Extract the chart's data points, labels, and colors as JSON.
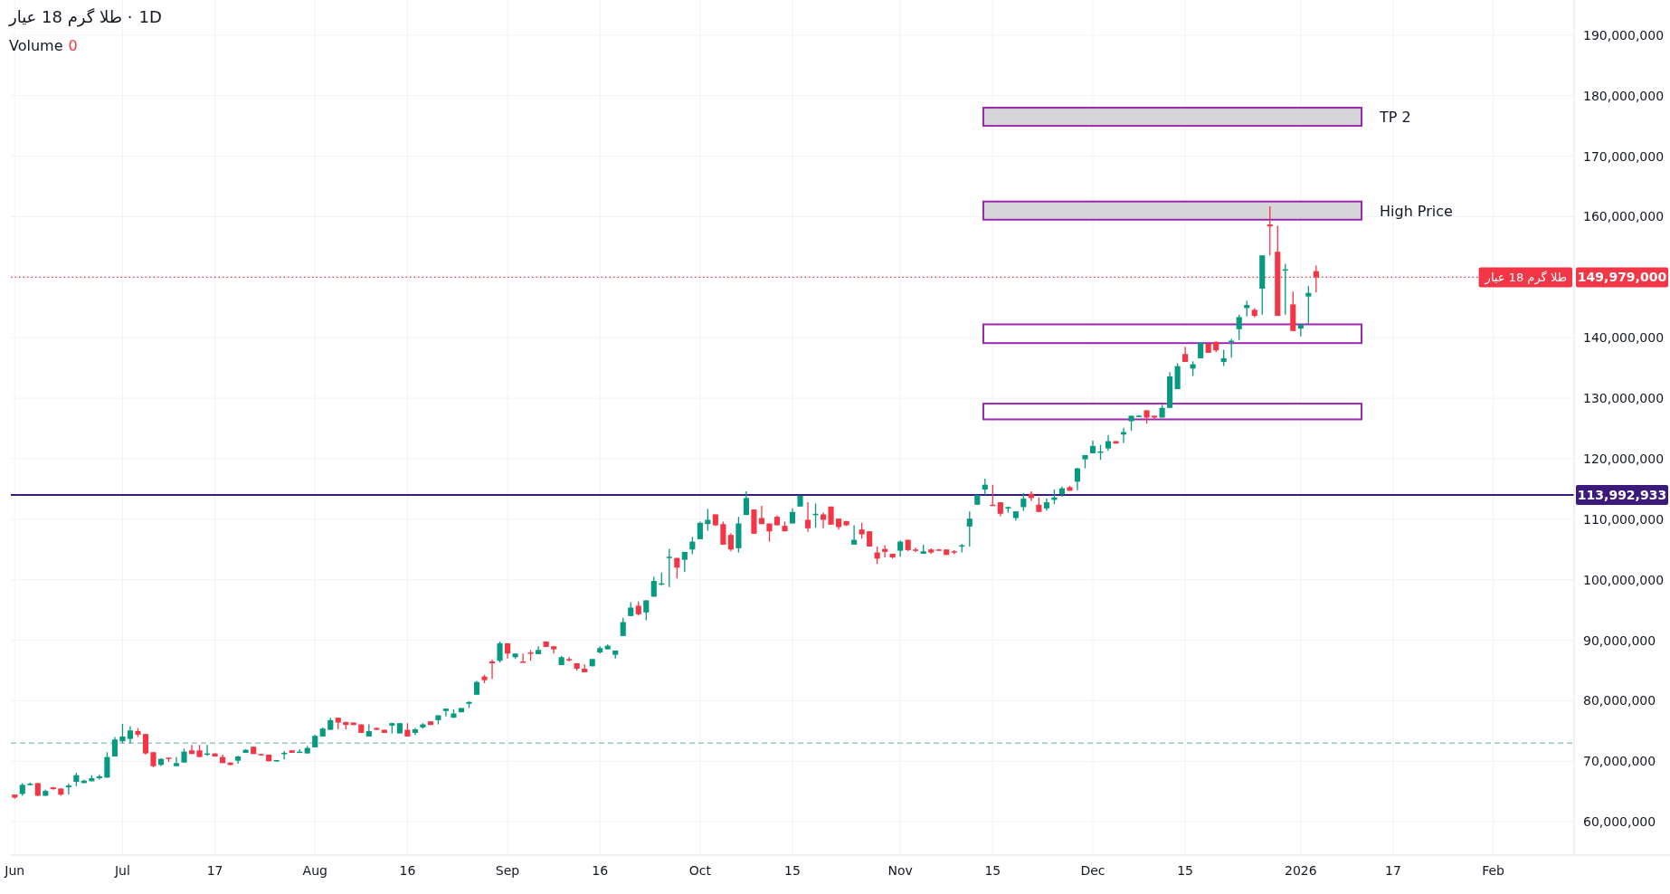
{
  "chart_data": {
    "type": "candlestick",
    "title": "طلا گرم 18 عیار ·",
    "subtitle": "1D",
    "annotations": [
      "Volume",
      "0",
      {
        "text": "طلا گرم 18 عیار",
        "y": 149979000.0
      }
    ],
    "categories": [
      "Jun",
      null,
      null,
      null,
      null,
      null,
      null,
      null,
      null,
      null,
      null,
      null,
      null,
      null,
      "Jul",
      null,
      null,
      null,
      null,
      null,
      null,
      null,
      null,
      null,
      null,
      null,
      "17",
      null,
      null,
      null,
      null,
      null,
      null,
      null,
      null,
      null,
      null,
      null,
      null,
      "Aug",
      null,
      null,
      null,
      null,
      null,
      null,
      null,
      null,
      null,
      null,
      null,
      "16",
      null,
      null,
      null,
      null,
      null,
      null,
      null,
      null,
      null,
      null,
      null,
      null,
      "Sep",
      null,
      null,
      null,
      null,
      null,
      null,
      null,
      null,
      null,
      null,
      null,
      "16",
      null,
      null,
      null,
      null,
      null,
      null,
      null,
      null,
      null,
      null,
      null,
      null,
      "Oct",
      null,
      null,
      null,
      null,
      null,
      null,
      null,
      null,
      null,
      null,
      null,
      "15",
      null,
      null,
      null,
      null,
      null,
      null,
      null,
      null,
      null,
      null,
      null,
      null,
      null,
      "Nov",
      null,
      null,
      null,
      null,
      null,
      null,
      null,
      null,
      null,
      null,
      null,
      "15",
      null,
      null,
      null,
      null,
      null,
      null,
      null,
      null,
      null,
      null,
      null,
      null,
      "Dec",
      null,
      null,
      null,
      null,
      null,
      null,
      null,
      null,
      null,
      null,
      null,
      "15",
      null,
      null,
      null,
      null,
      null,
      null,
      null,
      null,
      null,
      null,
      null,
      null,
      null,
      null,
      "2026",
      null,
      null,
      null,
      null,
      null,
      null,
      null,
      null,
      null,
      null,
      null,
      "17",
      null,
      null,
      null,
      null,
      null,
      null,
      null,
      null,
      null,
      null,
      null,
      null,
      "Feb",
      null,
      null,
      null,
      null,
      null,
      null,
      null,
      null,
      null,
      null
    ],
    "ohlc": [
      [
        64500000.0,
        64500000.0,
        63800000.0,
        64000000.0
      ],
      [
        64600000.0,
        66400000.0,
        64300000.0,
        66100000.0
      ],
      [
        66200000.0,
        66500000.0,
        66000000.0,
        66300000.0
      ],
      [
        66400000.0,
        66400000.0,
        64300000.0,
        64300000.0
      ],
      [
        64300000.0,
        65300000.0,
        64300000.0,
        65100000.0
      ],
      [
        65700000.0,
        65800000.0,
        65300000.0,
        65400000.0
      ],
      [
        65500000.0,
        65500000.0,
        64300000.0,
        64500000.0
      ],
      [
        65700000.0,
        66300000.0,
        64500000.0,
        66000000.0
      ],
      [
        66600000.0,
        68100000.0,
        65900000.0,
        67700000.0
      ],
      [
        66400000.0,
        67000000.0,
        66400000.0,
        66800000.0
      ],
      [
        66700000.0,
        67700000.0,
        66700000.0,
        67200000.0
      ],
      [
        67200000.0,
        67800000.0,
        67000000.0,
        67500000.0
      ],
      [
        67300000.0,
        71500000.0,
        67300000.0,
        70700000.0
      ],
      [
        70800000.0,
        74000000.0,
        70800000.0,
        73600000.0
      ],
      [
        73300000.0,
        76200000.0,
        73000000.0,
        74100000.0
      ],
      [
        73700000.0,
        75800000.0,
        73000000.0,
        75100000.0
      ],
      [
        75000000.0,
        75500000.0,
        74000000.0,
        74400000.0
      ],
      [
        74500000.0,
        74500000.0,
        71100000.0,
        71300000.0
      ],
      [
        71500000.0,
        71500000.0,
        69000000.0,
        69200000.0
      ],
      [
        69400000.0,
        70500000.0,
        69200000.0,
        70400000.0
      ],
      [
        70600000.0,
        70600000.0,
        69900000.0,
        70500000.0
      ],
      [
        69200000.0,
        70700000.0,
        69200000.0,
        69700000.0
      ],
      [
        69800000.0,
        72100000.0,
        69800000.0,
        71600000.0
      ],
      [
        71800000.0,
        72700000.0,
        71200000.0,
        71200000.0
      ],
      [
        71800000.0,
        72700000.0,
        70700000.0,
        70700000.0
      ],
      [
        71100000.0,
        72700000.0,
        70900000.0,
        71300000.0
      ],
      [
        71300000.0,
        71300000.0,
        70800000.0,
        70800000.0
      ],
      [
        70700000.0,
        71100000.0,
        69700000.0,
        69700000.0
      ],
      [
        69800000.0,
        69800000.0,
        69300000.0,
        69400000.0
      ],
      [
        70100000.0,
        70900000.0,
        69600000.0,
        70800000.0
      ],
      [
        71400000.0,
        72000000.0,
        71400000.0,
        71900000.0
      ],
      [
        72400000.0,
        72400000.0,
        71200000.0,
        71200000.0
      ],
      [
        71200000.0,
        71200000.0,
        71000000.0,
        71100000.0
      ],
      [
        71100000.0,
        71100000.0,
        70000000.0,
        70000000.0
      ],
      [
        70000000.0,
        70200000.0,
        69900000.0,
        70200000.0
      ],
      [
        71200000.0,
        71700000.0,
        70300000.0,
        71400000.0
      ],
      [
        71800000.0,
        71800000.0,
        71400000.0,
        71400000.0
      ],
      [
        71500000.0,
        72000000.0,
        71500000.0,
        71600000.0
      ],
      [
        71300000.0,
        72500000.0,
        71300000.0,
        72200000.0
      ],
      [
        72300000.0,
        74400000.0,
        72300000.0,
        74200000.0
      ],
      [
        74100000.0,
        75600000.0,
        74100000.0,
        75400000.0
      ],
      [
        75200000.0,
        77200000.0,
        75200000.0,
        76800000.0
      ],
      [
        77200000.0,
        77200000.0,
        75300000.0,
        76400000.0
      ],
      [
        76500000.0,
        76500000.0,
        75300000.0,
        76000000.0
      ],
      [
        76400000.0,
        76400000.0,
        76000000.0,
        76000000.0
      ],
      [
        76100000.0,
        76100000.0,
        74700000.0,
        74700000.0
      ],
      [
        74100000.0,
        76100000.0,
        74100000.0,
        75000000.0
      ],
      [
        75500000.0,
        75600000.0,
        75200000.0,
        75200000.0
      ],
      [
        75200000.0,
        75200000.0,
        74700000.0,
        74700000.0
      ],
      [
        75900000.0,
        76400000.0,
        74600000.0,
        76300000.0
      ],
      [
        74600000.0,
        76300000.0,
        74600000.0,
        76300000.0
      ],
      [
        75200000.0,
        76300000.0,
        74100000.0,
        74100000.0
      ],
      [
        74700000.0,
        75500000.0,
        74300000.0,
        75300000.0
      ],
      [
        75600000.0,
        76300000.0,
        75400000.0,
        76100000.0
      ],
      [
        76600000.0,
        76600000.0,
        76000000.0,
        76000000.0
      ],
      [
        76800000.0,
        77600000.0,
        76100000.0,
        77600000.0
      ],
      [
        78300000.0,
        78700000.0,
        77400000.0,
        78700000.0
      ],
      [
        77200000.0,
        78600000.0,
        77200000.0,
        77900000.0
      ],
      [
        78100000.0,
        78800000.0,
        78100000.0,
        78800000.0
      ],
      [
        79500000.0,
        79900000.0,
        78800000.0,
        79800000.0
      ],
      [
        81000000.0,
        83300000.0,
        81000000.0,
        83100000.0
      ],
      [
        84000000.0,
        84300000.0,
        82900000.0,
        83400000.0
      ],
      [
        86500000.0,
        86800000.0,
        83600000.0,
        86200000.0
      ],
      [
        86600000.0,
        89800000.0,
        86300000.0,
        89500000.0
      ],
      [
        89500000.0,
        89500000.0,
        87000000.0,
        87800000.0
      ],
      [
        87200000.0,
        87800000.0,
        86900000.0,
        87800000.0
      ],
      [
        86500000.0,
        87800000.0,
        86300000.0,
        86300000.0
      ],
      [
        88000000.0,
        88400000.0,
        86600000.0,
        87900000.0
      ],
      [
        87700000.0,
        89000000.0,
        87700000.0,
        88400000.0
      ],
      [
        89800000.0,
        89800000.0,
        88900000.0,
        88900000.0
      ],
      [
        89000000.0,
        89000000.0,
        87800000.0,
        88500000.0
      ],
      [
        85900000.0,
        87400000.0,
        85900000.0,
        87200000.0
      ],
      [
        86900000.0,
        87200000.0,
        86500000.0,
        86800000.0
      ],
      [
        86200000.0,
        86200000.0,
        85000000.0,
        85300000.0
      ],
      [
        85300000.0,
        86000000.0,
        84700000.0,
        84700000.0
      ],
      [
        85700000.0,
        86900000.0,
        85700000.0,
        86900000.0
      ],
      [
        88000000.0,
        89000000.0,
        87800000.0,
        88700000.0
      ],
      [
        88500000.0,
        89300000.0,
        88500000.0,
        89100000.0
      ],
      [
        87600000.0,
        88300000.0,
        87000000.0,
        88300000.0
      ],
      [
        90700000.0,
        93700000.0,
        90700000.0,
        93000000.0
      ],
      [
        94000000.0,
        96300000.0,
        94000000.0,
        95400000.0
      ],
      [
        95700000.0,
        96400000.0,
        94100000.0,
        94300000.0
      ],
      [
        94600000.0,
        96600000.0,
        93300000.0,
        96600000.0
      ],
      [
        97200000.0,
        100500000.0,
        97200000.0,
        99800000.0
      ],
      [
        99300000.0,
        101200000.0,
        99100000.0,
        99400000.0
      ],
      [
        103600000.0,
        105100000.0,
        98800000.0,
        103800000.0
      ],
      [
        103600000.0,
        103600000.0,
        100200000.0,
        102000000.0
      ],
      [
        103300000.0,
        104600000.0,
        101300000.0,
        104600000.0
      ],
      [
        105000000.0,
        107100000.0,
        104200000.0,
        106300000.0
      ],
      [
        106700000.0,
        109600000.0,
        106700000.0,
        109400000.0
      ],
      [
        109200000.0,
        111700000.0,
        108100000.0,
        109900000.0
      ],
      [
        110800000.0,
        110800000.0,
        108900000.0,
        109000000.0
      ],
      [
        109200000.0,
        109600000.0,
        105800000.0,
        105800000.0
      ],
      [
        107400000.0,
        107700000.0,
        104700000.0,
        105000000.0
      ],
      [
        105200000.0,
        110400000.0,
        104500000.0,
        109300000.0
      ],
      [
        110700000.0,
        114600000.0,
        110700000.0,
        113500000.0
      ],
      [
        111600000.0,
        111600000.0,
        107600000.0,
        107600000.0
      ],
      [
        110200000.0,
        112200000.0,
        109200000.0,
        109200000.0
      ],
      [
        109300000.0,
        109300000.0,
        106300000.0,
        108000000.0
      ],
      [
        110400000.0,
        110600000.0,
        109000000.0,
        109000000.0
      ],
      [
        108900000.0,
        109600000.0,
        108000000.0,
        108000000.0
      ],
      [
        109300000.0,
        111800000.0,
        109300000.0,
        111200000.0
      ],
      [
        112100000.0,
        113900000.0,
        112100000.0,
        113900000.0
      ],
      [
        109900000.0,
        112800000.0,
        107900000.0,
        108500000.0
      ],
      [
        110700000.0,
        112600000.0,
        108600000.0,
        110900000.0
      ],
      [
        110800000.0,
        111100000.0,
        108500000.0,
        109900000.0
      ],
      [
        112100000.0,
        112100000.0,
        109100000.0,
        109100000.0
      ],
      [
        110100000.0,
        110100000.0,
        108300000.0,
        108700000.0
      ],
      [
        109700000.0,
        109700000.0,
        108900000.0,
        109000000.0
      ],
      [
        105800000.0,
        109000000.0,
        105800000.0,
        106600000.0
      ],
      [
        108300000.0,
        109400000.0,
        106800000.0,
        107500000.0
      ],
      [
        108000000.0,
        108000000.0,
        105500000.0,
        105500000.0
      ],
      [
        104500000.0,
        105500000.0,
        102600000.0,
        103500000.0
      ],
      [
        105100000.0,
        105700000.0,
        103700000.0,
        104600000.0
      ],
      [
        104300000.0,
        104300000.0,
        103500000.0,
        103700000.0
      ],
      [
        104800000.0,
        106500000.0,
        103800000.0,
        106300000.0
      ],
      [
        106600000.0,
        106600000.0,
        104700000.0,
        104900000.0
      ],
      [
        105000000.0,
        105300000.0,
        104600000.0,
        104900000.0
      ],
      [
        104300000.0,
        105800000.0,
        104300000.0,
        104700000.0
      ],
      [
        105000000.0,
        105200000.0,
        104300000.0,
        104500000.0
      ],
      [
        105000000.0,
        105100000.0,
        104800000.0,
        104900000.0
      ],
      [
        105000000.0,
        105000000.0,
        104100000.0,
        104100000.0
      ],
      [
        104700000.0,
        104900000.0,
        104200000.0,
        104600000.0
      ],
      [
        105600000.0,
        105900000.0,
        104500000.0,
        105700000.0
      ],
      [
        108800000.0,
        111300000.0,
        105500000.0,
        110100000.0
      ],
      [
        112400000.0,
        114000000.0,
        112400000.0,
        114000000.0
      ],
      [
        114900000.0,
        116700000.0,
        114000000.0,
        115700000.0
      ],
      [
        112400000.0,
        115700000.0,
        112300000.0,
        112300000.0
      ],
      [
        112800000.0,
        112800000.0,
        110500000.0,
        110900000.0
      ],
      [
        111900000.0,
        112100000.0,
        111100000.0,
        112000000.0
      ],
      [
        110200000.0,
        111300000.0,
        109800000.0,
        111300000.0
      ],
      [
        112000000.0,
        114300000.0,
        111400000.0,
        113400000.0
      ],
      [
        114200000.0,
        114600000.0,
        113000000.0,
        113500000.0
      ],
      [
        112400000.0,
        113600000.0,
        111200000.0,
        111200000.0
      ],
      [
        111800000.0,
        113400000.0,
        111400000.0,
        112800000.0
      ],
      [
        113200000.0,
        114900000.0,
        112500000.0,
        113600000.0
      ],
      [
        114100000.0,
        115400000.0,
        113700000.0,
        115100000.0
      ],
      [
        115300000.0,
        115500000.0,
        114700000.0,
        114700000.0
      ],
      [
        116200000.0,
        118500000.0,
        114800000.0,
        118400000.0
      ],
      [
        119900000.0,
        120600000.0,
        118400000.0,
        120600000.0
      ],
      [
        120900000.0,
        123000000.0,
        120900000.0,
        122100000.0
      ],
      [
        121100000.0,
        122300000.0,
        119800000.0,
        121200000.0
      ],
      [
        121700000.0,
        123900000.0,
        121300000.0,
        122900000.0
      ],
      [
        122900000.0,
        122900000.0,
        122500000.0,
        122500000.0
      ],
      [
        124000000.0,
        125100000.0,
        122600000.0,
        124400000.0
      ],
      [
        126200000.0,
        127100000.0,
        124600000.0,
        127100000.0
      ],
      [
        127000000.0,
        127200000.0,
        126900000.0,
        127100000.0
      ],
      [
        128000000.0,
        128000000.0,
        125800000.0,
        126800000.0
      ],
      [
        127100000.0,
        127100000.0,
        126600000.0,
        126800000.0
      ],
      [
        126800000.0,
        128900000.0,
        126800000.0,
        128400000.0
      ],
      [
        128400000.0,
        134300000.0,
        128400000.0,
        133600000.0
      ],
      [
        131500000.0,
        135800000.0,
        131500000.0,
        135300000.0
      ],
      [
        137300000.0,
        138500000.0,
        136000000.0,
        136000000.0
      ],
      [
        134900000.0,
        136100000.0,
        133700000.0,
        135600000.0
      ],
      [
        136600000.0,
        139200000.0,
        136600000.0,
        139200000.0
      ],
      [
        139000000.0,
        139000000.0,
        137500000.0,
        137500000.0
      ],
      [
        139300000.0,
        139400000.0,
        137600000.0,
        137900000.0
      ],
      [
        136000000.0,
        138000000.0,
        135300000.0,
        136600000.0
      ],
      [
        139400000.0,
        139800000.0,
        136700000.0,
        139500000.0
      ],
      [
        141400000.0,
        143800000.0,
        139600000.0,
        143400000.0
      ],
      [
        144900000.0,
        146100000.0,
        143500000.0,
        145400000.0
      ],
      [
        144600000.0,
        144900000.0,
        143400000.0,
        143600000.0
      ],
      [
        148100000.0,
        153600000.0,
        143800000.0,
        153600000.0
      ],
      [
        158700000.0,
        161700000.0,
        153600000.0,
        158400000.0
      ],
      [
        154200000.0,
        158500000.0,
        143600000.0,
        143600000.0
      ],
      [
        151200000.0,
        152200000.0,
        143800000.0,
        151300000.0
      ],
      [
        145500000.0,
        147600000.0,
        141100000.0,
        141100000.0
      ],
      [
        141500000.0,
        142200000.0,
        140200000.0,
        142200000.0
      ],
      [
        146800000.0,
        148500000.0,
        142300000.0,
        147400000.0
      ],
      [
        151000000.0,
        151900000.0,
        147500000.0,
        149979000.0
      ],
      null,
      null,
      null,
      null,
      null,
      null,
      null,
      null,
      null,
      null,
      null,
      null,
      null,
      null,
      null,
      null,
      null,
      null,
      null,
      null,
      null,
      null,
      null,
      null,
      null,
      null,
      null,
      null,
      null,
      null,
      null,
      null,
      null
    ],
    "ylim": [
      54500000.0,
      195800000.0
    ],
    "yticks": [
      {
        "value": 60000000.0,
        "label": "60,000,000"
      },
      {
        "value": 70000000.0,
        "label": "70,000,000"
      },
      {
        "value": 80000000.0,
        "label": "80,000,000"
      },
      {
        "value": 90000000.0,
        "label": "90,000,000"
      },
      {
        "value": 100000000.0,
        "label": "100,000,000"
      },
      {
        "value": 110000000.0,
        "label": "110,000,000"
      },
      {
        "value": 120000000.0,
        "label": "120,000,000"
      },
      {
        "value": 130000000.0,
        "label": "130,000,000"
      },
      {
        "value": 140000000.0,
        "label": "140,000,000"
      },
      {
        "value": 150000000.0,
        "label": null
      },
      {
        "value": 160000000.0,
        "label": "160,000,000"
      },
      {
        "value": 170000000.0,
        "label": "170,000,000"
      },
      {
        "value": 180000000.0,
        "label": "180,000,000"
      },
      {
        "value": 190000000.0,
        "label": "190,000,000"
      }
    ],
    "ref_lines": [
      {
        "axis": "y",
        "value": 149979000.0,
        "label": "149,979,000",
        "color": "#f23645",
        "line_style": "dotted"
      },
      {
        "axis": "y",
        "value": 113992933.0,
        "label": "113,992,933",
        "color": "#3b1a7a",
        "line_style": "solid"
      },
      {
        "axis": "y",
        "value": 73000000.0,
        "color": "#9cc7c2",
        "line_style": "dashed"
      }
    ],
    "bands": [
      {
        "axis": "y",
        "from": 175000000.0,
        "to": 178000000.0,
        "label": "TP 2",
        "color": "#d6d6d8"
      },
      {
        "axis": "y",
        "from": 159500000.0,
        "to": 162500000.0,
        "label": "High Price",
        "color": "#d6d6d8"
      },
      {
        "axis": "y",
        "from": 139100000.0,
        "to": 142200000.0,
        "color": "#ffffff"
      },
      {
        "axis": "y",
        "from": 126500000.0,
        "to": 129100000.0,
        "color": "#ffffff"
      }
    ],
    "grid": true
  }
}
